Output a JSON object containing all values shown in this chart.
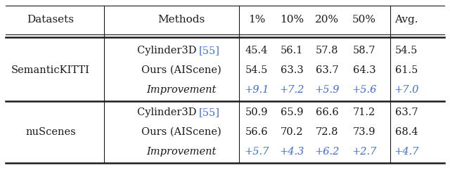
{
  "col_headers": [
    "Datasets",
    "Methods",
    "1%",
    "10%",
    "20%",
    "50%",
    "Avg."
  ],
  "section1_dataset": "SemanticKITTI",
  "section2_dataset": "nuScenes",
  "rows": [
    {
      "method": "Cylinder3D",
      "ref": "[55]",
      "italic": false,
      "values": [
        "45.4",
        "56.1",
        "57.8",
        "58.7",
        "54.5"
      ],
      "blue_vals": false
    },
    {
      "method": "Ours (AIScene)",
      "ref": "",
      "italic": false,
      "values": [
        "54.5",
        "63.3",
        "63.7",
        "64.3",
        "61.5"
      ],
      "blue_vals": false
    },
    {
      "method": "Improvement",
      "ref": "",
      "italic": true,
      "values": [
        "+9.1",
        "+7.2",
        "+5.9",
        "+5.6",
        "+7.0"
      ],
      "blue_vals": true
    },
    {
      "method": "Cylinder3D",
      "ref": "[55]",
      "italic": false,
      "values": [
        "50.9",
        "65.9",
        "66.6",
        "71.2",
        "63.7"
      ],
      "blue_vals": false
    },
    {
      "method": "Ours (AIScene)",
      "ref": "",
      "italic": false,
      "values": [
        "56.6",
        "70.2",
        "72.8",
        "73.9",
        "68.4"
      ],
      "blue_vals": false
    },
    {
      "method": "Improvement",
      "ref": "",
      "italic": true,
      "values": [
        "+5.7",
        "+4.3",
        "+6.2",
        "+2.7",
        "+4.7"
      ],
      "blue_vals": true
    }
  ],
  "blue_color": "#3a6fd8",
  "black_color": "#1a1a1a",
  "bg_color": "#ffffff",
  "fontsize": 10.5
}
